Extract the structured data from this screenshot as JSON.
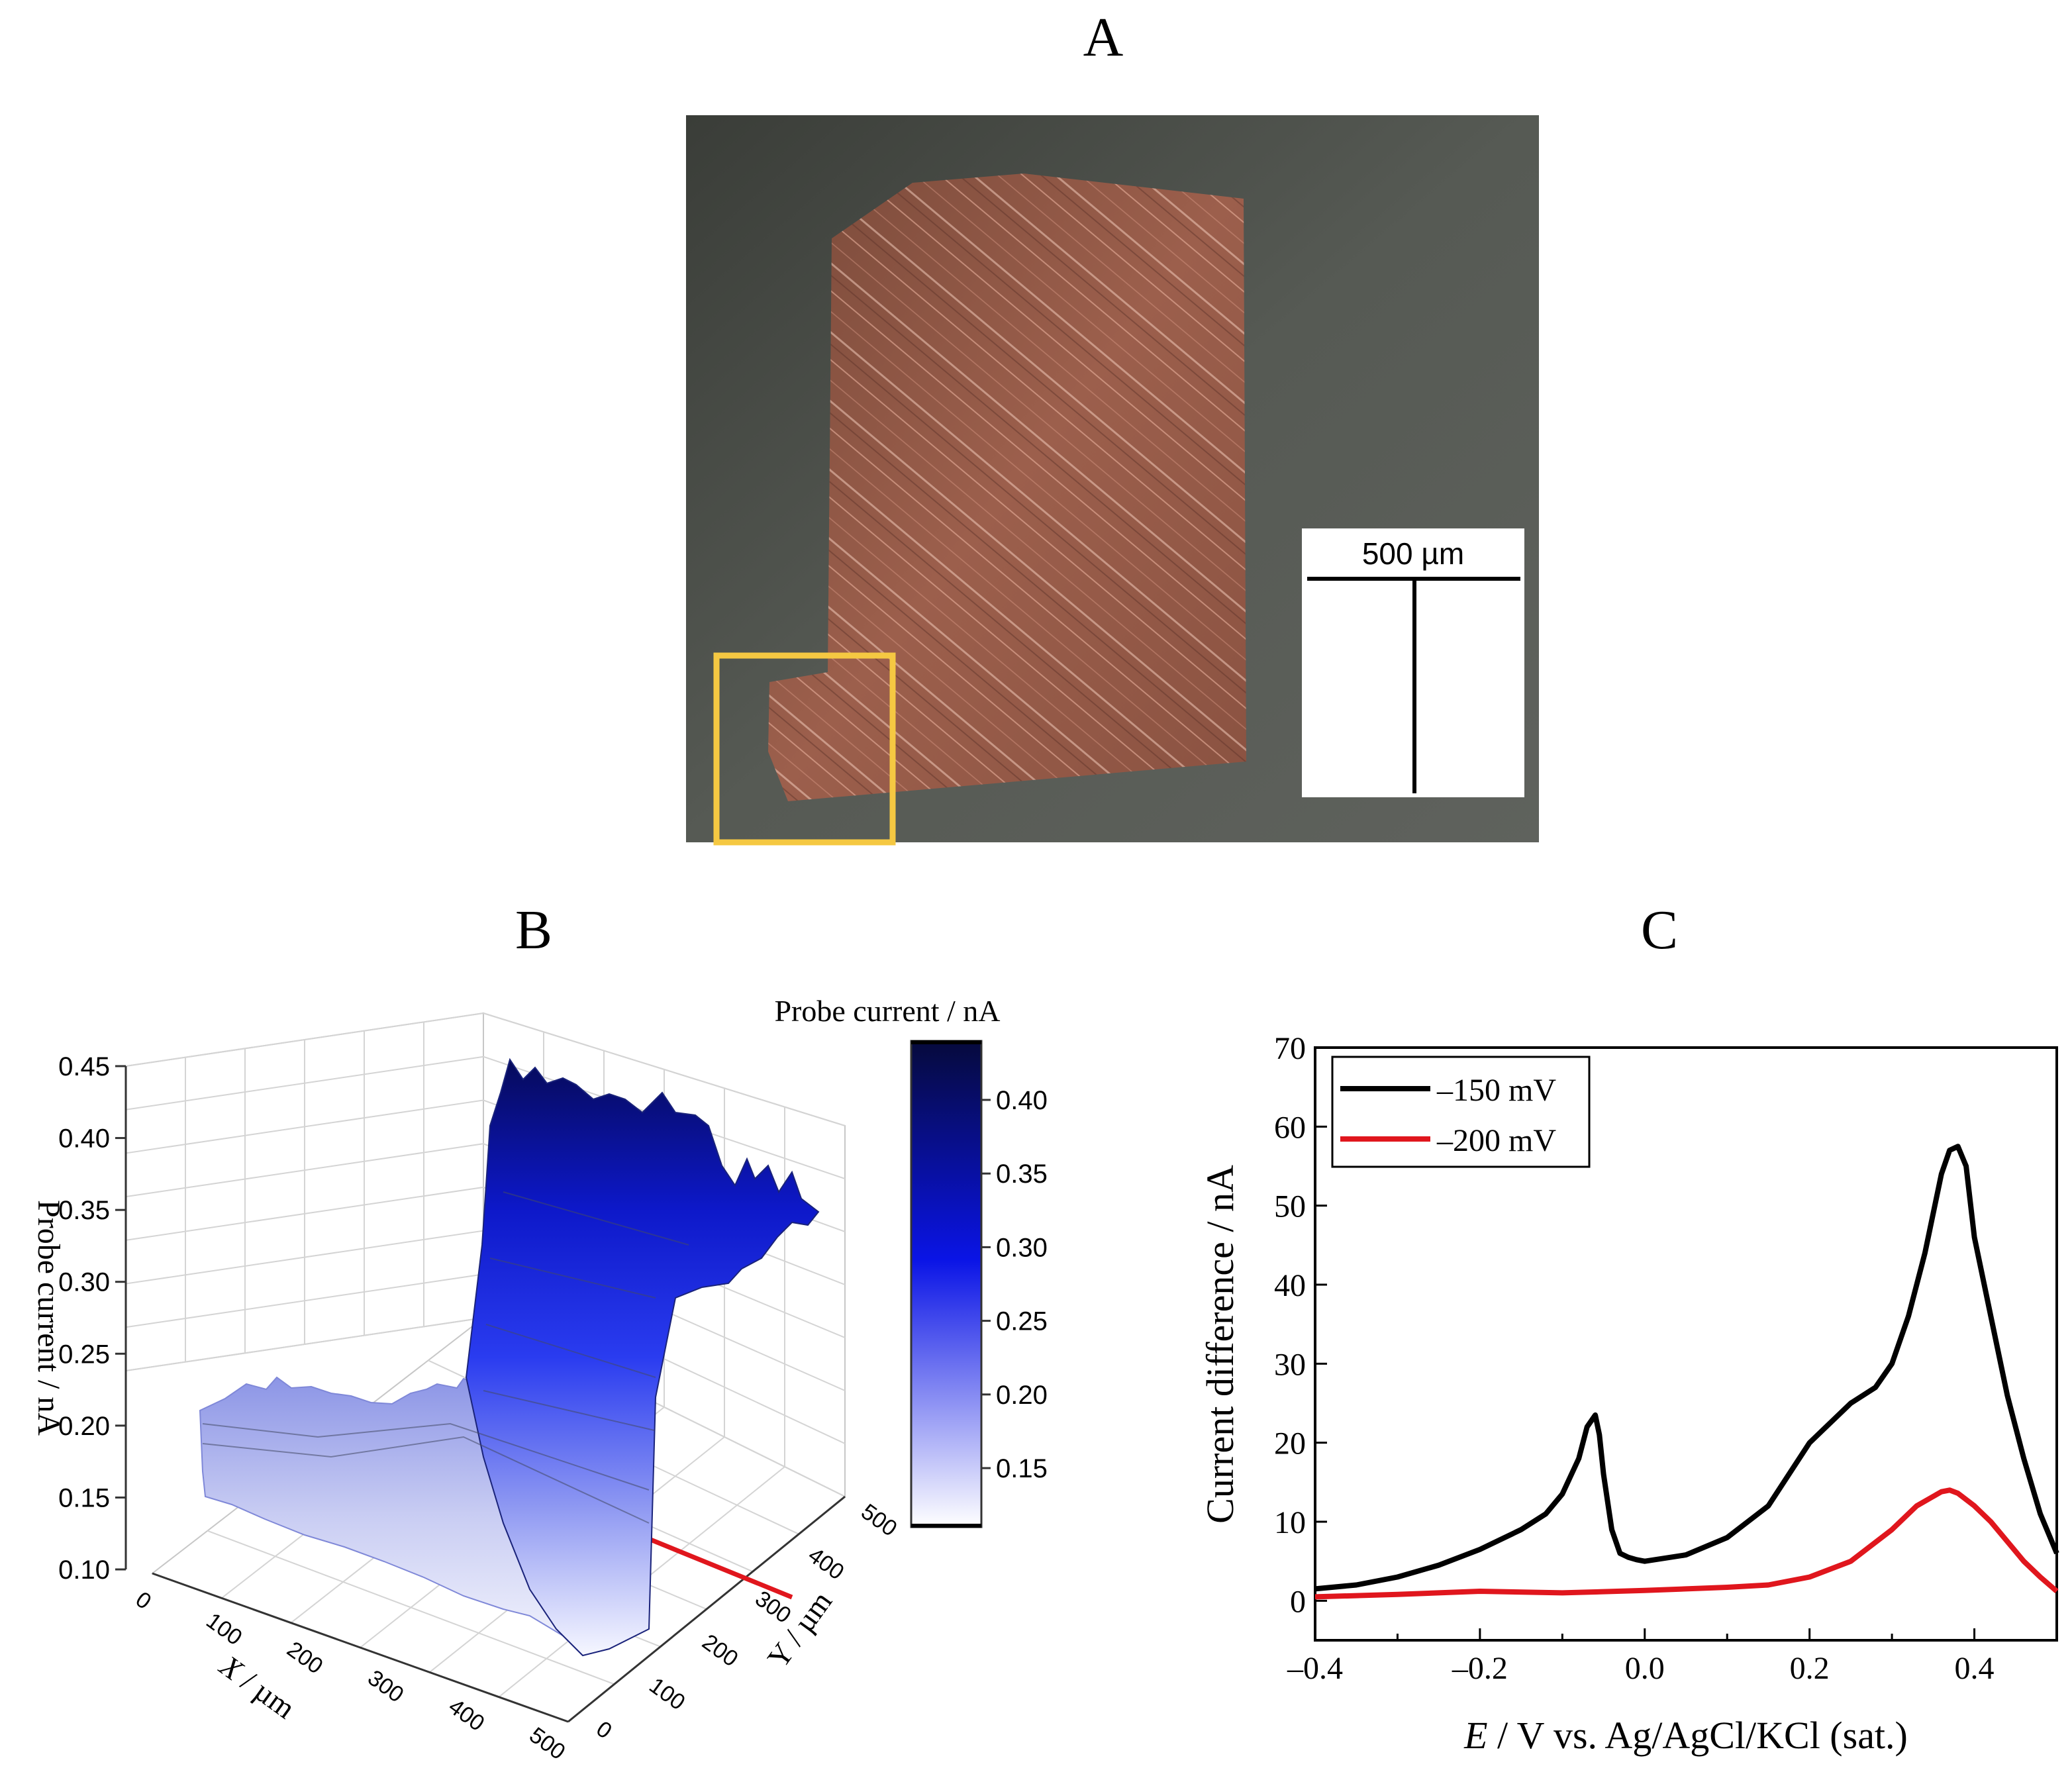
{
  "panels": {
    "a": "A",
    "b": "B",
    "c": "C"
  },
  "panel_a": {
    "scale_bar_label": "500 µm"
  },
  "chart_data": [
    {
      "type": "surface3d",
      "panel": "B",
      "zlabel": "Probe current / nA",
      "xlabel": "X / µm",
      "ylabel": "Y / µm",
      "z_ticks": [
        "0.10",
        "0.15",
        "0.20",
        "0.25",
        "0.30",
        "0.35",
        "0.40",
        "0.45"
      ],
      "x_ticks": [
        "0",
        "100",
        "200",
        "300",
        "400",
        "500"
      ],
      "y_ticks": [
        "0",
        "100",
        "200",
        "300",
        "400",
        "500"
      ],
      "zlim": [
        0.1,
        0.45
      ],
      "colorbar": {
        "title": "Probe current / nA",
        "ticks": [
          "0.40",
          "0.35",
          "0.30",
          "0.25",
          "0.20",
          "0.15"
        ],
        "range": [
          0.11,
          0.44
        ],
        "color_low": "#ffffff",
        "color_mid": "#0a14e6",
        "color_high": "#060a3c"
      }
    },
    {
      "type": "line",
      "panel": "C",
      "xlabel_italic": "E",
      "xlabel_rest": " / V vs. Ag/AgCl/KCl (sat.)",
      "ylabel": "Current difference / nA",
      "xlim": [
        -0.4,
        0.5
      ],
      "ylim": [
        -5,
        70
      ],
      "x_ticks": [
        "-0.4",
        "-0.2",
        "0.0",
        "0.2",
        "0.4"
      ],
      "y_ticks": [
        "0",
        "10",
        "20",
        "30",
        "40",
        "50",
        "60",
        "70"
      ],
      "series": [
        {
          "name": "–150 mV",
          "color": "#000000",
          "x": [
            -0.4,
            -0.35,
            -0.3,
            -0.25,
            -0.2,
            -0.15,
            -0.12,
            -0.1,
            -0.08,
            -0.07,
            -0.06,
            -0.055,
            -0.05,
            -0.04,
            -0.03,
            -0.02,
            -0.01,
            0.0,
            0.05,
            0.1,
            0.15,
            0.2,
            0.25,
            0.28,
            0.3,
            0.32,
            0.34,
            0.36,
            0.37,
            0.38,
            0.39,
            0.4,
            0.42,
            0.44,
            0.46,
            0.48,
            0.5
          ],
          "y": [
            1.5,
            2.0,
            3.0,
            4.5,
            6.5,
            9.0,
            11.0,
            13.5,
            18.0,
            22.0,
            23.5,
            21.0,
            16.0,
            9.0,
            6.0,
            5.5,
            5.2,
            5.0,
            5.8,
            8.0,
            12.0,
            20.0,
            25.0,
            27.0,
            30.0,
            36.0,
            44.0,
            54.0,
            57.0,
            57.5,
            55.0,
            46.0,
            36.0,
            26.0,
            18.0,
            11.0,
            6.0
          ]
        },
        {
          "name": "–200 mV",
          "color": "#e0161d",
          "x": [
            -0.4,
            -0.3,
            -0.2,
            -0.1,
            0.0,
            0.05,
            0.1,
            0.15,
            0.2,
            0.25,
            0.3,
            0.33,
            0.36,
            0.37,
            0.38,
            0.4,
            0.42,
            0.44,
            0.46,
            0.48,
            0.5
          ],
          "y": [
            0.5,
            0.8,
            1.2,
            1.0,
            1.3,
            1.5,
            1.7,
            2.0,
            3.0,
            5.0,
            9.0,
            12.0,
            13.8,
            14.0,
            13.6,
            12.0,
            10.0,
            7.5,
            5.0,
            3.0,
            1.2
          ]
        }
      ]
    }
  ]
}
